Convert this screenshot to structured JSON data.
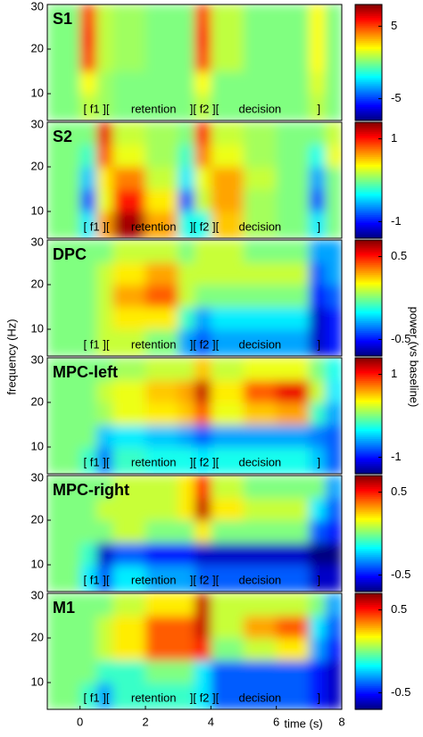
{
  "figure": {
    "ylabel": "frequency (Hz)",
    "xlabel": "time (s)",
    "colorbar_label": "power (vs baseline)"
  },
  "chart_data": [
    {
      "type": "heatmap",
      "title": "S1",
      "xlim": [
        -1,
        8
      ],
      "ylim": [
        4,
        30
      ],
      "yticks": [
        10,
        20,
        30
      ],
      "clim": [
        -8,
        8
      ],
      "cticks": [
        -5,
        5
      ],
      "x": [
        -1,
        0,
        0.5,
        1,
        2,
        3,
        3.5,
        4,
        5,
        6,
        7,
        7.5,
        8
      ],
      "y": [
        4,
        10,
        15,
        20,
        25,
        30
      ],
      "annotations": [
        "[ f1 ][",
        "retention",
        "][ f2 ][",
        "decision",
        "]"
      ],
      "z": [
        [
          0,
          1,
          0.5,
          0,
          0,
          0,
          1,
          0,
          0,
          0,
          1,
          0
        ],
        [
          0,
          2,
          0.5,
          0,
          0,
          0,
          2,
          0,
          0,
          0,
          1.5,
          0
        ],
        [
          0,
          5,
          1,
          0.5,
          0,
          0,
          5,
          1,
          0,
          0,
          2,
          0
        ],
        [
          0,
          6,
          1,
          0.5,
          0,
          0,
          6,
          1,
          0,
          0,
          2,
          0
        ],
        [
          0,
          5,
          1,
          0.5,
          0,
          0,
          5,
          1,
          0,
          0,
          2,
          0
        ]
      ]
    },
    {
      "type": "heatmap",
      "title": "S2",
      "xlim": [
        -1,
        8
      ],
      "ylim": [
        4,
        30
      ],
      "yticks": [
        10,
        20,
        30
      ],
      "clim": [
        -1.4,
        1.4
      ],
      "cticks": [
        -1,
        1
      ],
      "x": [
        -1,
        0,
        0.5,
        1,
        2,
        3,
        3.5,
        4,
        5,
        6,
        7,
        7.5,
        8
      ],
      "y": [
        4,
        10,
        15,
        20,
        25,
        30
      ],
      "annotations": [
        "[ f1 ][",
        "retention",
        "][ f2 ][",
        "decision",
        "]"
      ],
      "z": [
        [
          0,
          -0.4,
          0.6,
          1.3,
          0.6,
          -0.3,
          -0.3,
          0.5,
          0.1,
          0,
          -0.4,
          0
        ],
        [
          0,
          -0.8,
          0.3,
          1.0,
          0.4,
          -0.8,
          0.2,
          0.6,
          0.1,
          0,
          -0.8,
          0
        ],
        [
          0,
          -0.5,
          0.4,
          0.7,
          0.2,
          -0.4,
          0.3,
          0.6,
          0.2,
          0,
          -0.6,
          0
        ],
        [
          0,
          -0.2,
          0.8,
          0.3,
          0.1,
          -0.2,
          0.7,
          0.3,
          0.1,
          0,
          -0.3,
          0.3
        ],
        [
          0,
          0,
          1.1,
          0.2,
          0.1,
          0,
          1.0,
          0.2,
          0.1,
          0,
          0,
          0.2
        ]
      ]
    },
    {
      "type": "heatmap",
      "title": "DPC",
      "xlim": [
        -1,
        8
      ],
      "ylim": [
        4,
        30
      ],
      "yticks": [
        10,
        20,
        30
      ],
      "clim": [
        -0.7,
        0.7
      ],
      "cticks": [
        -0.5,
        0.5
      ],
      "x": [
        -1,
        0,
        0.5,
        1,
        2,
        3,
        3.5,
        4,
        5,
        6,
        7,
        7.5,
        8
      ],
      "y": [
        4,
        10,
        15,
        20,
        25,
        30
      ],
      "annotations": [
        "[ f1 ][",
        "retention",
        "][ f2 ][",
        "decision",
        "]"
      ],
      "z": [
        [
          0,
          0,
          0.1,
          0.1,
          0,
          -0.3,
          -0.4,
          -0.3,
          -0.3,
          -0.3,
          -0.6,
          -0.5
        ],
        [
          0,
          0,
          0.1,
          0.2,
          0.2,
          -0.1,
          -0.3,
          -0.2,
          -0.2,
          -0.2,
          -0.6,
          -0.5
        ],
        [
          0,
          0,
          0.1,
          0.3,
          0.4,
          0.1,
          0,
          0,
          0,
          0,
          -0.5,
          -0.4
        ],
        [
          0,
          0,
          0.1,
          0.2,
          0.3,
          0.1,
          0.1,
          0.1,
          0.1,
          0.1,
          -0.4,
          -0.3
        ],
        [
          0,
          0,
          0,
          0.1,
          0.1,
          0,
          0.1,
          0.1,
          0,
          0,
          -0.3,
          -0.3
        ]
      ]
    },
    {
      "type": "heatmap",
      "title": "MPC-left",
      "xlim": [
        -1,
        8
      ],
      "ylim": [
        4,
        30
      ],
      "yticks": [
        10,
        20,
        30
      ],
      "clim": [
        -1.4,
        1.4
      ],
      "cticks": [
        -1,
        1
      ],
      "x": [
        -1,
        0,
        0.5,
        1,
        2,
        3,
        3.5,
        4,
        5,
        6,
        7,
        7.5,
        8
      ],
      "y": [
        4,
        10,
        15,
        20,
        25,
        30
      ],
      "annotations": [
        "[ f1 ][",
        "retention",
        "][ f2 ][",
        "decision",
        "]"
      ],
      "z": [
        [
          0,
          -0.2,
          -0.7,
          -0.2,
          -0.3,
          -0.3,
          -0.4,
          -0.3,
          -0.3,
          -0.3,
          -0.5,
          -0.8
        ],
        [
          0,
          0,
          -0.5,
          -0.4,
          -0.5,
          -0.6,
          -0.8,
          -0.6,
          -0.6,
          -0.6,
          -0.7,
          -0.8
        ],
        [
          0,
          0,
          0.1,
          0.3,
          0.4,
          0.5,
          0.8,
          0.3,
          0.5,
          0.6,
          -0.2,
          -0.6
        ],
        [
          0,
          0,
          0.2,
          0.3,
          0.5,
          0.6,
          1.2,
          0.4,
          0.8,
          1.1,
          0.2,
          -0.4
        ],
        [
          0,
          0,
          0,
          0.1,
          0.2,
          0.2,
          0.5,
          0.2,
          0.3,
          0.3,
          0,
          -0.3
        ]
      ]
    },
    {
      "type": "heatmap",
      "title": "MPC-right",
      "xlim": [
        -1,
        8
      ],
      "ylim": [
        4,
        30
      ],
      "yticks": [
        10,
        20,
        30
      ],
      "clim": [
        -0.7,
        0.7
      ],
      "cticks": [
        -0.5,
        0.5
      ],
      "x": [
        -1,
        0,
        0.5,
        1,
        2,
        3,
        3.5,
        4,
        5,
        6,
        7,
        7.5,
        8
      ],
      "y": [
        4,
        10,
        15,
        20,
        25,
        30
      ],
      "annotations": [
        "[ f1 ][",
        "retention",
        "][ f2 ][",
        "decision",
        "]"
      ],
      "z": [
        [
          0,
          -0.2,
          -0.4,
          -0.2,
          -0.3,
          -0.3,
          -0.4,
          -0.4,
          -0.4,
          -0.4,
          -0.6,
          -0.6
        ],
        [
          0,
          -0.1,
          -0.6,
          -0.4,
          -0.5,
          -0.5,
          -0.6,
          -0.6,
          -0.6,
          -0.6,
          -0.7,
          -0.7
        ],
        [
          0,
          0,
          0,
          0.1,
          0,
          0,
          0.2,
          0,
          0,
          0,
          -0.4,
          -0.5
        ],
        [
          0,
          0,
          0.1,
          0.1,
          0.1,
          0.2,
          0.6,
          0.2,
          0.1,
          0.1,
          -0.2,
          -0.4
        ],
        [
          0,
          0,
          0,
          0.1,
          0.1,
          0.2,
          0.5,
          0.1,
          0,
          0,
          0,
          -0.3
        ]
      ]
    },
    {
      "type": "heatmap",
      "title": "M1",
      "xlim": [
        -1,
        8
      ],
      "ylim": [
        4,
        30
      ],
      "yticks": [
        10,
        20,
        30
      ],
      "xticks": [
        0,
        2,
        4,
        6,
        8
      ],
      "clim": [
        -0.7,
        0.7
      ],
      "cticks": [
        -0.5,
        0.5
      ],
      "x": [
        -1,
        0,
        0.5,
        1,
        2,
        3,
        3.5,
        4,
        5,
        6,
        7,
        7.5,
        8
      ],
      "y": [
        4,
        10,
        15,
        20,
        25,
        30
      ],
      "annotations": [
        "[ f1 ][",
        "retention",
        "][ f2 ][",
        "decision",
        "]"
      ],
      "z": [
        [
          0,
          -0.1,
          -0.3,
          -0.1,
          -0.1,
          -0.1,
          -0.2,
          -0.4,
          -0.4,
          -0.4,
          -0.5,
          -0.6
        ],
        [
          0,
          0,
          -0.1,
          -0.1,
          0,
          0,
          -0.2,
          -0.4,
          -0.4,
          -0.4,
          -0.5,
          -0.6
        ],
        [
          0,
          0,
          0.1,
          0.2,
          0.4,
          0.4,
          0.5,
          0,
          0.1,
          0.2,
          -0.3,
          -0.5
        ],
        [
          0,
          0,
          0.1,
          0.2,
          0.4,
          0.4,
          0.6,
          0.1,
          0.3,
          0.4,
          -0.2,
          -0.4
        ],
        [
          0,
          0,
          0,
          0.1,
          0.2,
          0.2,
          0.6,
          0.1,
          0.1,
          0.1,
          0,
          -0.3
        ]
      ]
    }
  ]
}
